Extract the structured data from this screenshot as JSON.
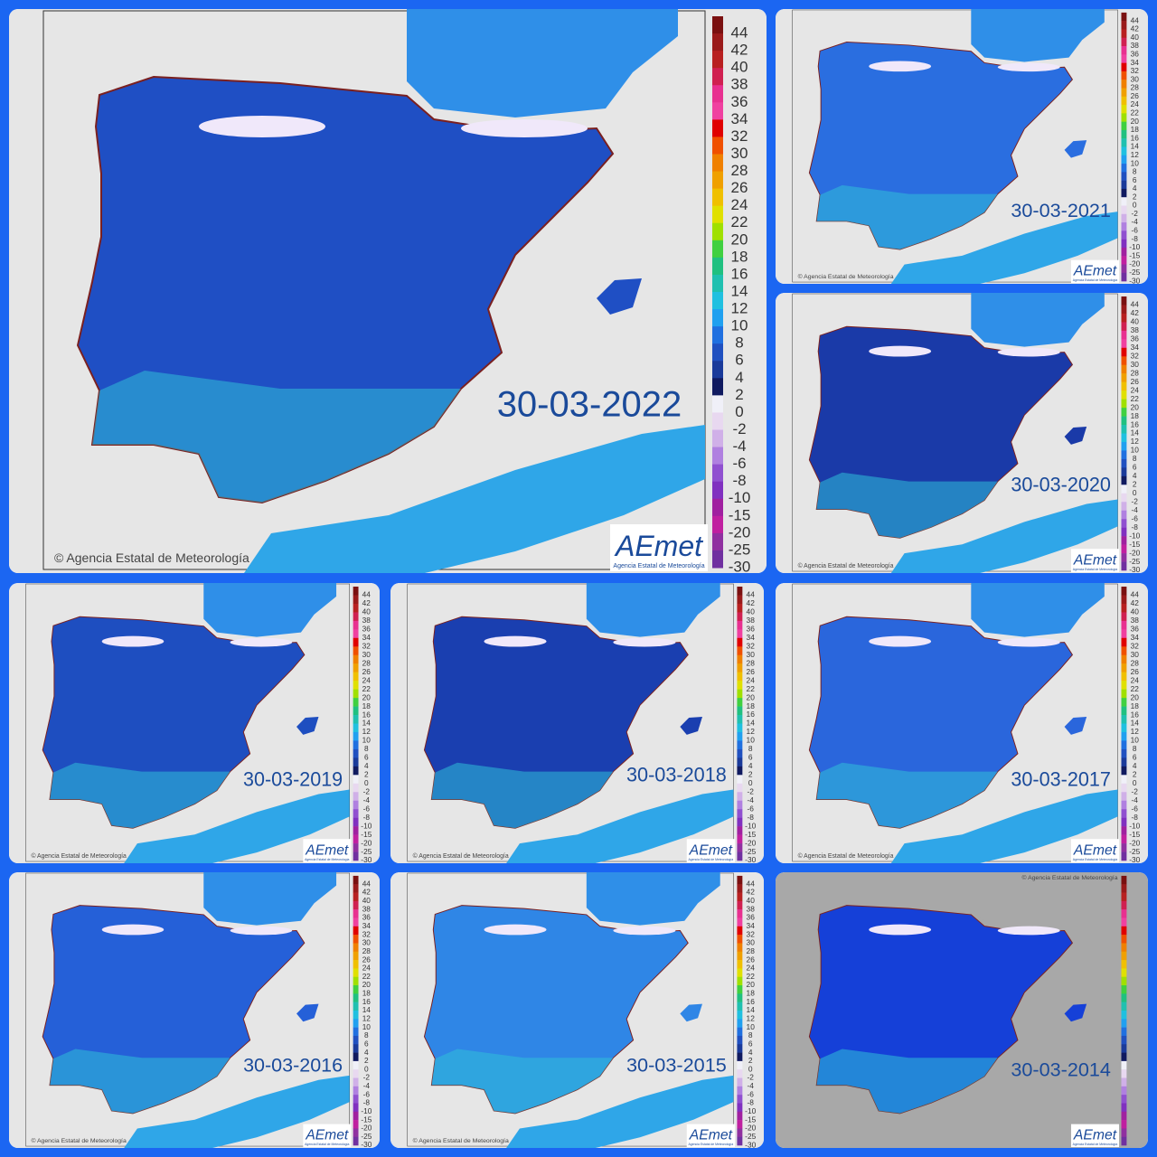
{
  "panels": [
    {
      "date": "30-03-2022"
    },
    {
      "date": "30-03-2021"
    },
    {
      "date": "30-03-2020"
    },
    {
      "date": "30-03-2019"
    },
    {
      "date": "30-03-2018"
    },
    {
      "date": "30-03-2017"
    },
    {
      "date": "30-03-2016"
    },
    {
      "date": "30-03-2015"
    },
    {
      "date": "30-03-2014"
    }
  ],
  "credit": "© Agencia Estatal de Meteorología",
  "logo": "AEmet",
  "logo_sub": "Agencia Estatal de Meteorología",
  "legend_labels": [
    "44",
    "42",
    "40",
    "38",
    "36",
    "34",
    "32",
    "30",
    "28",
    "26",
    "24",
    "22",
    "20",
    "18",
    "16",
    "14",
    "12",
    "10",
    "8",
    "6",
    "4",
    "2",
    "0",
    "-2",
    "-4",
    "-6",
    "-8",
    "-10",
    "-15",
    "-20",
    "-25",
    "-30"
  ],
  "legend_colors": [
    "#7a1010",
    "#9a1a1a",
    "#b82020",
    "#d02050",
    "#e83090",
    "#f040a0",
    "#e00000",
    "#f05000",
    "#f08000",
    "#f0a000",
    "#f0c000",
    "#e0e000",
    "#a0e000",
    "#40d040",
    "#20c080",
    "#20c0b0",
    "#20c0e0",
    "#20a0f0",
    "#2070e0",
    "#2050c0",
    "#1a3a9a",
    "#101a60",
    "#f0f0f8",
    "#e8d8f0",
    "#d0b0e8",
    "#b080e0",
    "#9050d0",
    "#8030c0",
    "#a020a0",
    "#c020a0",
    "#9030a0",
    "#7030a0"
  ]
}
